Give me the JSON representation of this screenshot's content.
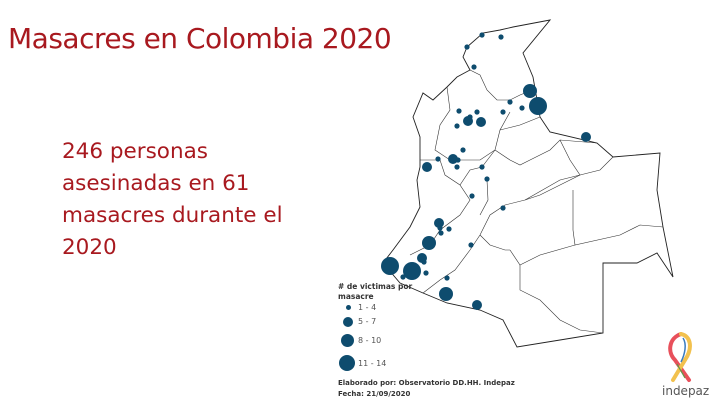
{
  "slide": {
    "title": "Masacres en Colombia 2020",
    "body_lines": [
      "246 personas",
      "asesinadas en 61",
      "masacres durante el",
      "2020"
    ]
  },
  "map": {
    "marker_color": "#0e4c6e",
    "legend": {
      "title_lines": [
        "# de victimas por",
        "masacre"
      ],
      "items": [
        {
          "label": "1 - 4"
        },
        {
          "label": "5 - 7"
        },
        {
          "label": "8 - 10"
        },
        {
          "label": "11 - 14"
        }
      ]
    },
    "credit": "Elaborado por: Observatorio DD.HH.  Indepaz",
    "date": "Fecha: 21/09/2020"
  },
  "logo": {
    "text": "indepaz"
  },
  "colors": {
    "title": "#a8191f",
    "marker": "#0e4c6e"
  }
}
